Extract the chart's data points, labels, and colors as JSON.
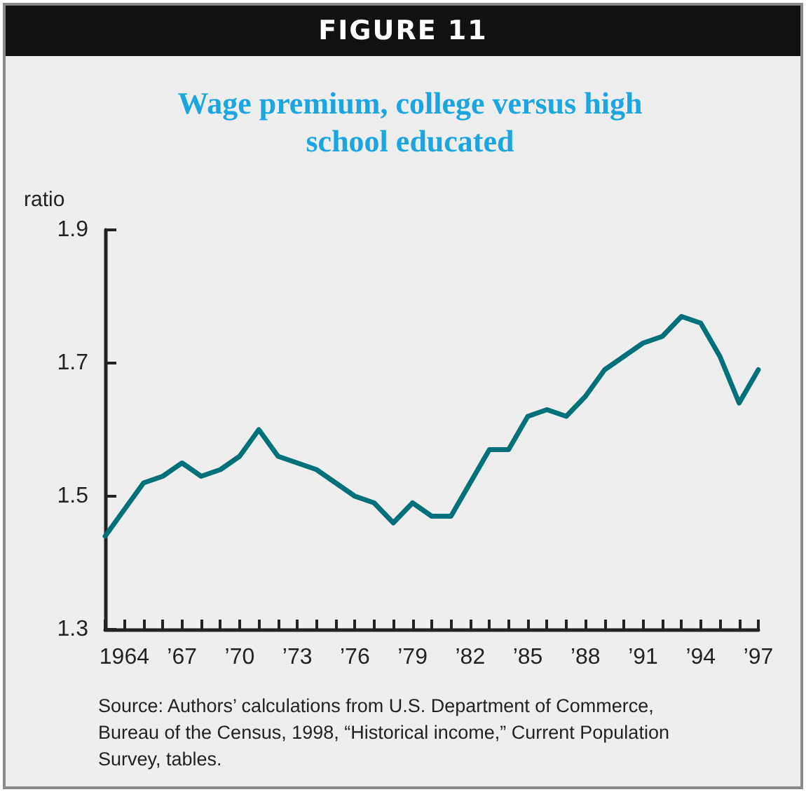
{
  "chart_data": {
    "type": "line",
    "title": "Wage premium, college versus high school educated",
    "ylabel": "ratio",
    "annotations": [
      "FIGURE 11",
      "Source: Authors’ calculations from U.S. Department of Commerce, Bureau of the Census, 1998, “Historical income,” Current Population Survey, tables."
    ],
    "x": [
      1963,
      1964,
      1965,
      1966,
      1967,
      1968,
      1969,
      1970,
      1971,
      1972,
      1973,
      1974,
      1975,
      1976,
      1977,
      1978,
      1979,
      1980,
      1981,
      1982,
      1983,
      1984,
      1985,
      1986,
      1987,
      1988,
      1989,
      1990,
      1991,
      1992,
      1993,
      1994,
      1995,
      1996,
      1997
    ],
    "series": [
      {
        "color": "#00717b",
        "values": [
          1.44,
          1.48,
          1.52,
          1.53,
          1.55,
          1.53,
          1.54,
          1.56,
          1.6,
          1.56,
          1.55,
          1.54,
          1.52,
          1.5,
          1.49,
          1.46,
          1.49,
          1.47,
          1.47,
          1.52,
          1.57,
          1.57,
          1.62,
          1.63,
          1.62,
          1.65,
          1.69,
          1.71,
          1.73,
          1.74,
          1.77,
          1.76,
          1.71,
          1.64,
          1.69
        ]
      }
    ],
    "xlim": [
      1963,
      1997
    ],
    "xticks": [
      {
        "value": 1963,
        "label": null
      },
      {
        "value": 1964,
        "label": "1964"
      },
      {
        "value": 1965,
        "label": null
      },
      {
        "value": 1966,
        "label": null
      },
      {
        "value": 1967,
        "label": "’67"
      },
      {
        "value": 1968,
        "label": null
      },
      {
        "value": 1969,
        "label": null
      },
      {
        "value": 1970,
        "label": "’70"
      },
      {
        "value": 1971,
        "label": null
      },
      {
        "value": 1972,
        "label": null
      },
      {
        "value": 1973,
        "label": "’73"
      },
      {
        "value": 1974,
        "label": null
      },
      {
        "value": 1975,
        "label": null
      },
      {
        "value": 1976,
        "label": "’76"
      },
      {
        "value": 1977,
        "label": null
      },
      {
        "value": 1978,
        "label": null
      },
      {
        "value": 1979,
        "label": "’79"
      },
      {
        "value": 1980,
        "label": null
      },
      {
        "value": 1981,
        "label": null
      },
      {
        "value": 1982,
        "label": "’82"
      },
      {
        "value": 1983,
        "label": null
      },
      {
        "value": 1984,
        "label": null
      },
      {
        "value": 1985,
        "label": "’85"
      },
      {
        "value": 1986,
        "label": null
      },
      {
        "value": 1987,
        "label": null
      },
      {
        "value": 1988,
        "label": "’88"
      },
      {
        "value": 1989,
        "label": null
      },
      {
        "value": 1990,
        "label": null
      },
      {
        "value": 1991,
        "label": "’91"
      },
      {
        "value": 1992,
        "label": null
      },
      {
        "value": 1993,
        "label": null
      },
      {
        "value": 1994,
        "label": "’94"
      },
      {
        "value": 1995,
        "label": null
      },
      {
        "value": 1996,
        "label": null
      },
      {
        "value": 1997,
        "label": "’97"
      }
    ],
    "ylim": [
      1.3,
      1.9
    ],
    "yticks": [
      1.3,
      1.5,
      1.7,
      1.9
    ],
    "grid": false,
    "marker": "none",
    "line_style": "solid"
  }
}
